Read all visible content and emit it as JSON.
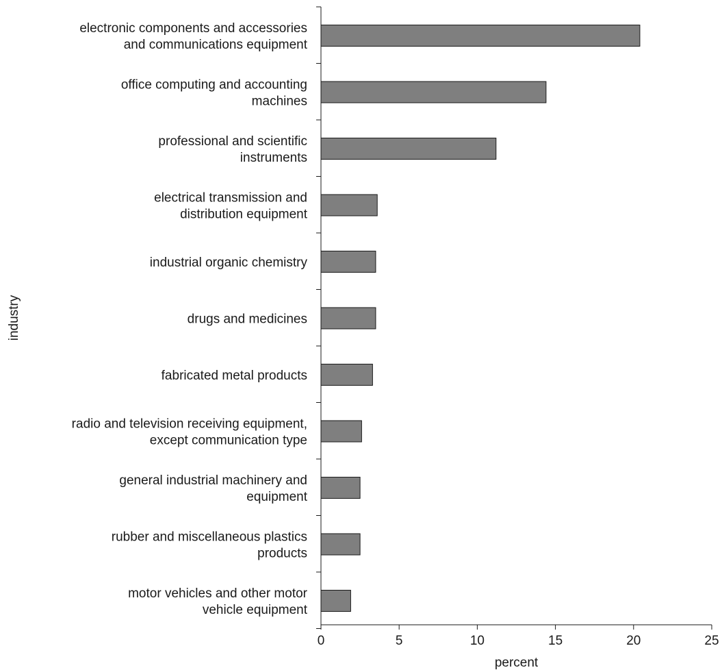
{
  "chart_data": {
    "type": "bar",
    "orientation": "horizontal",
    "xlabel": "percent",
    "ylabel": "industry",
    "xlim": [
      0,
      25
    ],
    "xticks": [
      0,
      5,
      10,
      15,
      20,
      25
    ],
    "grid": false,
    "categories": [
      [
        "electronic components and accessories",
        "and communications equipment"
      ],
      [
        "office computing and accounting",
        "machines"
      ],
      [
        "professional and scientific",
        "instruments"
      ],
      [
        "electrical transmission and",
        "distribution equipment"
      ],
      [
        "industrial organic chemistry"
      ],
      [
        "drugs and medicines"
      ],
      [
        "fabricated metal products"
      ],
      [
        "radio and television receiving equipment,",
        "except communication type"
      ],
      [
        "general industrial machinery and",
        "equipment"
      ],
      [
        "rubber and miscellaneous plastics",
        "products"
      ],
      [
        "motor vehicles and other motor",
        "vehicle equipment"
      ]
    ],
    "values": [
      20.4,
      14.4,
      11.2,
      3.6,
      3.5,
      3.5,
      3.3,
      2.6,
      2.5,
      2.5,
      1.9
    ],
    "bar_color": "#7f7f7f"
  }
}
